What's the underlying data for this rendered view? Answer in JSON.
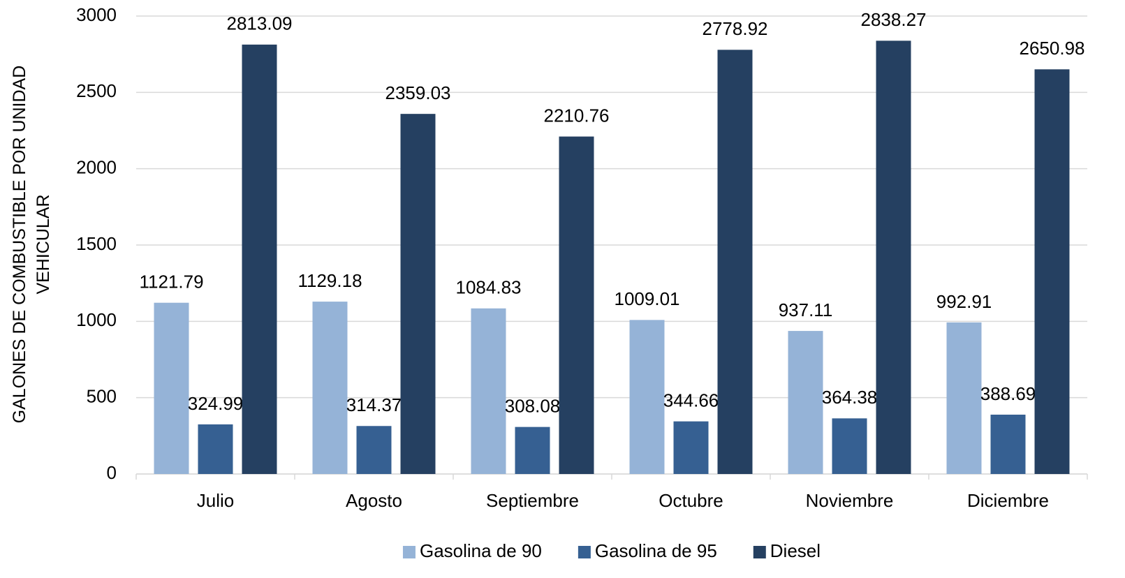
{
  "chart_data": {
    "type": "bar",
    "y_label": "GALONES DE COMBUSTIBLE POR UNIDAD VEHICULAR",
    "categories": [
      "Julio",
      "Agosto",
      "Septiembre",
      "Octubre",
      "Noviembre",
      "Diciembre"
    ],
    "series": [
      {
        "name": "Gasolina de 90",
        "color": "#95b3d7",
        "values": [
          1121.79,
          1129.18,
          1084.83,
          1009.01,
          937.11,
          992.91
        ]
      },
      {
        "name": "Gasolina de 95",
        "color": "#366092",
        "values": [
          324.99,
          314.37,
          308.08,
          344.66,
          364.38,
          388.69
        ]
      },
      {
        "name": "Diesel",
        "color": "#254061",
        "values": [
          2813.09,
          2359.03,
          2210.76,
          2778.92,
          2838.27,
          2650.98
        ]
      }
    ],
    "ylim": [
      0,
      3000
    ],
    "yticks": [
      0,
      500,
      1000,
      1500,
      2000,
      2500,
      3000
    ],
    "grid": true,
    "legend": "bottom"
  }
}
